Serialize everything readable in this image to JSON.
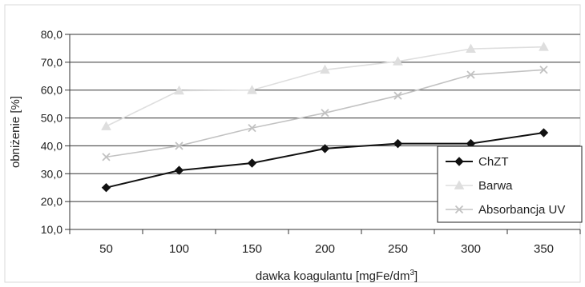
{
  "chart_data": {
    "type": "line",
    "title": "",
    "xlabel": "dawka koagulantu [mgFe/dm",
    "xlabel_sup": "3",
    "xlabel_suffix": "]",
    "ylabel": "obniżenie [%]",
    "x": [
      50,
      100,
      150,
      200,
      250,
      300,
      350
    ],
    "x_tick_labels": [
      "50",
      "100",
      "150",
      "200",
      "250",
      "300",
      "350"
    ],
    "ylim": [
      10,
      80
    ],
    "y_ticks": [
      10,
      20,
      30,
      40,
      50,
      60,
      70,
      80
    ],
    "y_tick_labels": [
      "10,0",
      "20,0",
      "30,0",
      "40,0",
      "50,0",
      "60,0",
      "70,0",
      "80,0"
    ],
    "grid": "horizontal",
    "legend_position": "bottom-right",
    "series": [
      {
        "name": "ChZT",
        "marker": "diamond",
        "color": "#111111",
        "values": [
          25.0,
          31.2,
          33.8,
          39.0,
          40.8,
          40.8,
          44.7
        ]
      },
      {
        "name": "Barwa",
        "marker": "triangle",
        "color": "#dedede",
        "values": [
          47.0,
          59.8,
          60.0,
          67.3,
          70.3,
          74.8,
          75.5
        ]
      },
      {
        "name": "Absorbancja UV",
        "marker": "cross",
        "color": "#c2c2c2",
        "values": [
          36.0,
          40.0,
          46.4,
          51.8,
          58.0,
          65.5,
          67.3
        ]
      }
    ]
  }
}
